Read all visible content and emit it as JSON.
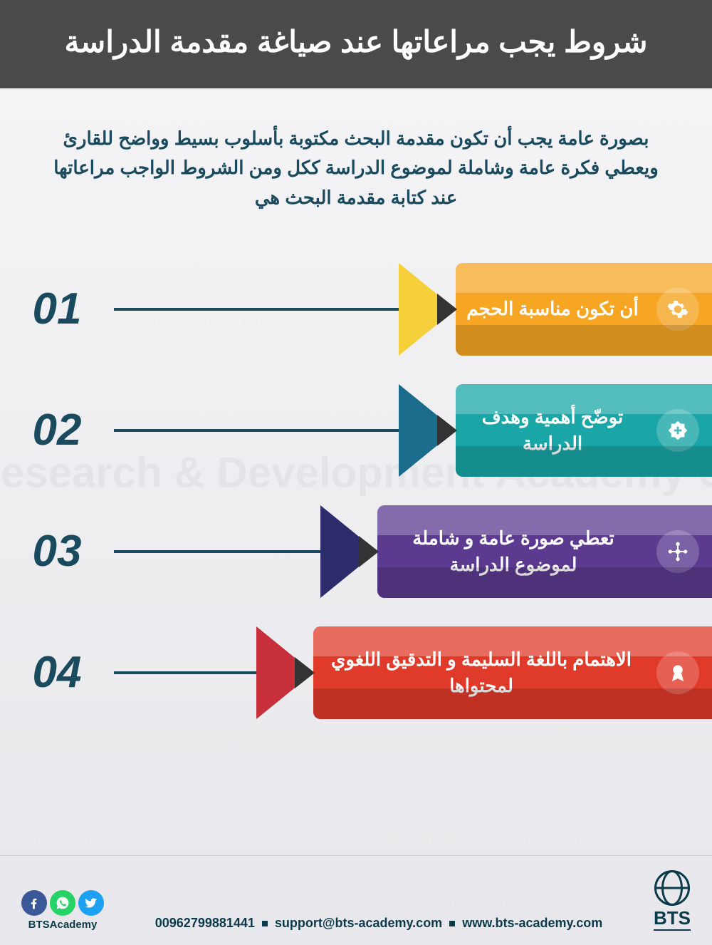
{
  "header": {
    "title": "شروط يجب مراعاتها عند صياغة مقدمة الدراسة",
    "background": "#4a4a4a",
    "text_color": "#ffffff",
    "font_size": 42
  },
  "intro": {
    "text": "بصورة عامة يجب أن تكون مقدمة البحث مكتوبة بأسلوب بسيط وواضح للقارئ ويعطي فكرة عامة وشاملة لموضوع الدراسة ككل ومن الشروط الواجب مراعاتها عند كتابة مقدمة البحث هي",
    "color": "#1a4a5e",
    "font_size": 26
  },
  "items": [
    {
      "number": "01",
      "text": "أن تكون مناسبة الحجم",
      "body_color": "#f6a623",
      "tip_color": "#f6d03a",
      "body_width": 360,
      "icon": "gear"
    },
    {
      "number": "02",
      "text": "توضّح أهمية وهدف الدراسة",
      "body_color": "#1aa6a6",
      "tip_color": "#1a6b8c",
      "body_width": 360,
      "icon": "plus"
    },
    {
      "number": "03",
      "text": "تعطي صورة عامة و شاملة  لموضوع الدراسة",
      "body_color": "#5b3a8f",
      "tip_color": "#2c2c6b",
      "body_width": 470,
      "icon": "network"
    },
    {
      "number": "04",
      "text": "الاهتمام باللغة السليمة و التدقيق اللغوي لمحتواها",
      "body_color": "#e03a2a",
      "tip_color": "#c7303a",
      "body_width": 560,
      "icon": "ribbon"
    }
  ],
  "layout": {
    "number_color": "#1a4a5e",
    "number_font_size": 62,
    "item_height": 130,
    "item_gap": 40,
    "tip_width": 80
  },
  "watermark": "Research & Development Academy Co.",
  "footer": {
    "phone": "00962799881441",
    "email": "support@bts-academy.com",
    "website": "www.bts-academy.com",
    "handle": "BTSAcademy",
    "logo_text": "BTS",
    "socials": [
      {
        "name": "twitter",
        "color": "#1da1f2"
      },
      {
        "name": "whatsapp",
        "color": "#25d366"
      },
      {
        "name": "facebook",
        "color": "#3b5998"
      }
    ],
    "text_color": "#0b3a4a"
  }
}
